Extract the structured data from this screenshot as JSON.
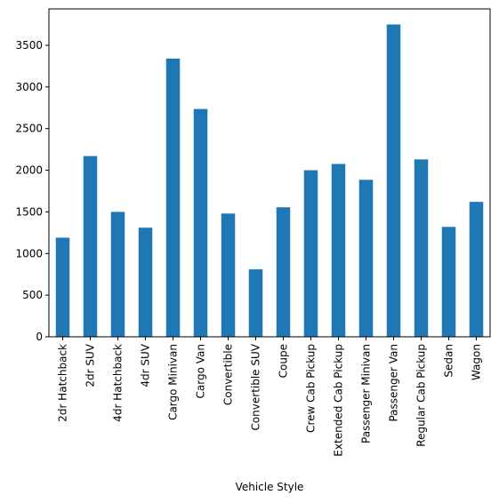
{
  "chart_data": {
    "type": "bar",
    "title": "",
    "xlabel": "Vehicle Style",
    "ylabel": "",
    "categories": [
      "2dr Hatchback",
      "2dr SUV",
      "4dr Hatchback",
      "4dr SUV",
      "Cargo Minivan",
      "Cargo Van",
      "Convertible",
      "Convertible SUV",
      "Coupe",
      "Crew Cab Pickup",
      "Extended Cab Pickup",
      "Passenger Minivan",
      "Passenger Van",
      "Regular Cab Pickup",
      "Sedan",
      "Wagon"
    ],
    "values": [
      1190,
      2170,
      1500,
      1310,
      3340,
      2735,
      1480,
      810,
      1555,
      2000,
      2075,
      1885,
      3750,
      2130,
      1320,
      1620
    ],
    "ylim": [
      0,
      3937
    ],
    "yticks": [
      0,
      500,
      1000,
      1500,
      2000,
      2500,
      3000,
      3500
    ],
    "grid": false,
    "legend": "none",
    "bar_color": "#1f77b4"
  }
}
